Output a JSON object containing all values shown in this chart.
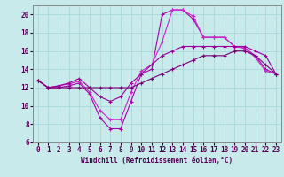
{
  "title": "",
  "xlabel": "Windchill (Refroidissement éolien,°C)",
  "ylabel": "",
  "xlim": [
    -0.5,
    23.5
  ],
  "ylim": [
    6,
    21
  ],
  "yticks": [
    6,
    8,
    10,
    12,
    14,
    16,
    18,
    20
  ],
  "xticks": [
    0,
    1,
    2,
    3,
    4,
    5,
    6,
    7,
    8,
    9,
    10,
    11,
    12,
    13,
    14,
    15,
    16,
    17,
    18,
    19,
    20,
    21,
    22,
    23
  ],
  "bg_color": "#c8eaea",
  "grid_color": "#a8d8d8",
  "line_color1": "#aa00aa",
  "line_color2": "#cc22cc",
  "line_color3": "#990099",
  "line_color4": "#770077",
  "series1_y": [
    12.8,
    12.0,
    12.0,
    12.2,
    12.5,
    11.3,
    8.7,
    7.5,
    7.5,
    10.5,
    13.5,
    14.0,
    20.0,
    20.5,
    20.5,
    19.5,
    17.5,
    17.5,
    17.5,
    16.5,
    16.3,
    15.5,
    14.0,
    13.5
  ],
  "series2_y": [
    12.8,
    12.0,
    12.2,
    12.4,
    12.7,
    11.5,
    9.5,
    8.5,
    8.5,
    11.5,
    13.8,
    14.5,
    17.0,
    20.5,
    20.5,
    19.8,
    17.5,
    17.5,
    17.5,
    16.5,
    16.3,
    15.3,
    13.8,
    13.5
  ],
  "series3_y": [
    12.8,
    12.0,
    12.2,
    12.5,
    13.0,
    12.0,
    11.0,
    10.5,
    11.0,
    12.5,
    13.5,
    14.5,
    15.5,
    16.0,
    16.5,
    16.5,
    16.5,
    16.5,
    16.5,
    16.5,
    16.5,
    16.0,
    15.5,
    13.5
  ],
  "series4_y": [
    12.8,
    12.0,
    12.0,
    12.0,
    12.0,
    12.0,
    12.0,
    12.0,
    12.0,
    12.0,
    12.5,
    13.0,
    13.5,
    14.0,
    14.5,
    15.0,
    15.5,
    15.5,
    15.5,
    16.0,
    16.0,
    15.5,
    14.5,
    13.5
  ]
}
